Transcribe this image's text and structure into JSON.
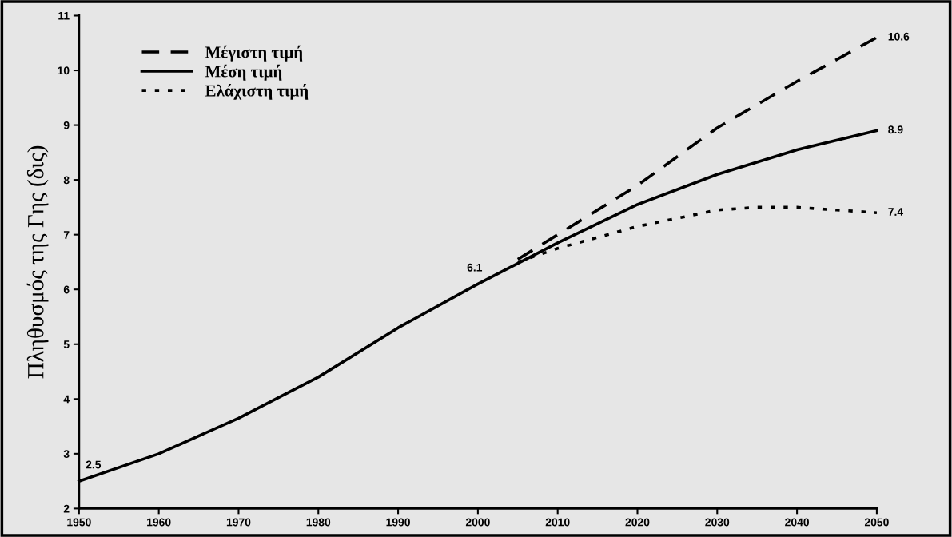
{
  "chart_data": {
    "type": "line",
    "ylabel": "Πληθυσμός της Γης (δις)",
    "xlim": [
      1950,
      2050
    ],
    "xticks": [
      1950,
      1960,
      1970,
      1980,
      1990,
      2000,
      2010,
      2020,
      2030,
      2040,
      2050
    ],
    "ylim": [
      2,
      11
    ],
    "yticks": [
      2,
      3,
      4,
      5,
      6,
      7,
      8,
      9,
      10,
      11
    ],
    "grid": false,
    "legend": "top left",
    "marker": "none",
    "series": [
      {
        "name": "Μέγιστη τιμή",
        "color": "#000000",
        "line_style": "dashed",
        "x": [
          2005,
          2010,
          2020,
          2030,
          2040,
          2050
        ],
        "values": [
          6.55,
          7.0,
          7.9,
          8.95,
          9.8,
          10.6
        ]
      },
      {
        "name": "Μέση τιμή",
        "color": "#000000",
        "line_style": "solid",
        "x": [
          1950,
          1960,
          1970,
          1980,
          1990,
          2000,
          2010,
          2020,
          2030,
          2040,
          2050
        ],
        "values": [
          2.5,
          3.0,
          3.65,
          4.4,
          5.3,
          6.1,
          6.85,
          7.55,
          8.1,
          8.55,
          8.9
        ]
      },
      {
        "name": "Ελάχιστη τιμή",
        "color": "#000000",
        "line_style": "dotted",
        "x": [
          2005,
          2010,
          2020,
          2030,
          2035,
          2040,
          2045,
          2050
        ],
        "values": [
          6.5,
          6.75,
          7.15,
          7.45,
          7.5,
          7.5,
          7.45,
          7.4
        ]
      }
    ],
    "annotations": [
      {
        "text": "2.5",
        "x": 1950,
        "y": 2.5
      },
      {
        "text": "6.1",
        "x": 2000,
        "y": 6.1
      },
      {
        "text": "10.6",
        "x": 2050,
        "y": 10.6
      },
      {
        "text": "8.9",
        "x": 2050,
        "y": 8.9
      },
      {
        "text": "7.4",
        "x": 2050,
        "y": 7.4
      }
    ]
  }
}
